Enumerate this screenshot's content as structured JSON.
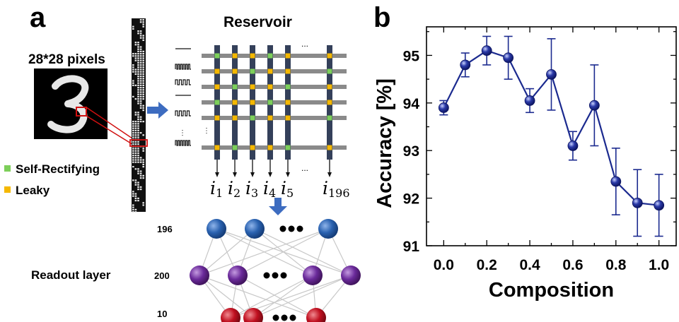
{
  "panel_a": {
    "label": "a",
    "pixels_label": "28*28 pixels",
    "reservoir_title": "Reservoir",
    "legend": [
      {
        "label": "Self-Rectifying",
        "color": "#7dcf5a"
      },
      {
        "label": "Leaky",
        "color": "#f5b800"
      }
    ],
    "outputs": [
      "1",
      "2",
      "3",
      "4",
      "5",
      "196"
    ],
    "output_symbol": "i",
    "dots": "...",
    "readout_title": "Readout layer",
    "layer_sizes": [
      "196",
      "200",
      "10"
    ],
    "node_colors": {
      "input": "#2a62b0",
      "hidden": "#6a2a9a",
      "output": "#c01020"
    },
    "grid_colors": {
      "row": "#8a8a8a",
      "col": "#34405a"
    }
  },
  "panel_b": {
    "label": "b"
  },
  "chart_data": {
    "type": "line",
    "title": "",
    "xlabel": "Composition",
    "ylabel": "Accuracy [%]",
    "xlim": [
      -0.08,
      1.08
    ],
    "ylim": [
      91,
      95.6
    ],
    "xticks": [
      "0.0",
      "0.2",
      "0.4",
      "0.6",
      "0.8",
      "1.0"
    ],
    "yticks": [
      "91",
      "92",
      "93",
      "94",
      "95"
    ],
    "series": [
      {
        "color": "#1b2a8f",
        "x": [
          0.0,
          0.1,
          0.2,
          0.3,
          0.4,
          0.5,
          0.6,
          0.7,
          0.8,
          0.9,
          1.0
        ],
        "y": [
          93.9,
          94.8,
          95.1,
          94.95,
          94.05,
          94.6,
          93.1,
          93.95,
          92.35,
          91.9,
          91.85
        ],
        "err": [
          0.15,
          0.25,
          0.3,
          0.45,
          0.25,
          0.75,
          0.3,
          0.85,
          0.7,
          0.7,
          0.65
        ]
      }
    ]
  }
}
